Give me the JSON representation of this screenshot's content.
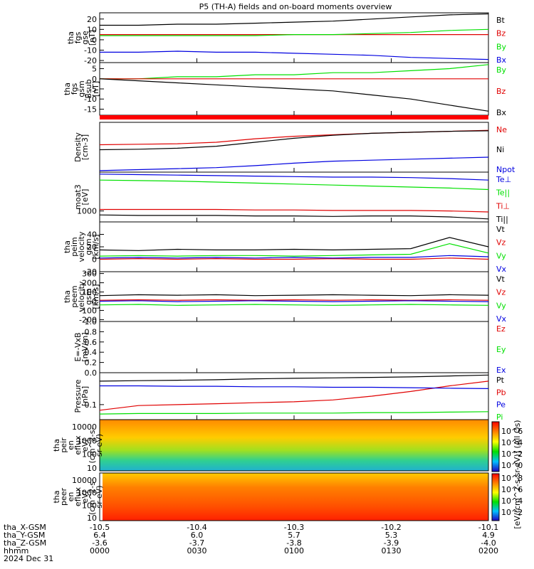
{
  "title": "P5 (TH-A) fields and on-board moments overview",
  "colors": {
    "black": "#000000",
    "red": "#e00000",
    "green": "#00e000",
    "blue": "#0000e0"
  },
  "chart_data": {
    "type": "line",
    "x_axis": {
      "time_labels": [
        "0000",
        "0030",
        "0100",
        "0130",
        "0200"
      ],
      "x_gsm": [
        "-10.5",
        "-10.4",
        "-10.3",
        "-10.2",
        "-10.1"
      ],
      "y_gsm": [
        "6.4",
        "6.0",
        "5.7",
        "5.3",
        "4.9"
      ],
      "z_gsm": [
        "-3.6",
        "-3.7",
        "-3.8",
        "-3.9",
        "-4.0"
      ],
      "row_labels": [
        "tha_X-GSM",
        "tha_Y-GSM",
        "tha_Z-GSM",
        "hhmm",
        "2024 Dec 31"
      ]
    },
    "panels": [
      {
        "ylabel": [
          "tha",
          "fgs",
          "gse",
          "[nT]"
        ],
        "ylim": [
          -22,
          26
        ],
        "yticks": [
          "20",
          "10",
          "0",
          "-10",
          "-20"
        ],
        "ytick_values": [
          20,
          10,
          0,
          -10,
          -20
        ],
        "legend": [
          "Bt",
          "Bz",
          "By",
          "Bx"
        ],
        "series": [
          {
            "name": "Bt",
            "color": "#000000",
            "values": [
              14,
              14,
              15,
              15,
              16,
              17,
              18,
              20,
              22,
              24,
              25
            ]
          },
          {
            "name": "Bz",
            "color": "#e00000",
            "values": [
              5,
              5,
              5,
              5,
              5,
              5,
              5,
              5,
              5,
              5,
              5
            ]
          },
          {
            "name": "By",
            "color": "#00e000",
            "values": [
              4,
              4,
              4,
              4,
              4,
              5,
              5,
              6,
              7,
              9,
              10
            ]
          },
          {
            "name": "Bx",
            "color": "#0000e0",
            "values": [
              -12,
              -12,
              -11,
              -12,
              -12,
              -13,
              -14,
              -15,
              -17,
              -18,
              -19
            ]
          }
        ]
      },
      {
        "ylabel": [
          "tha",
          "fgs",
          "gsm",
          "Bsub",
          "[nT]"
        ],
        "ylim": [
          -18,
          8
        ],
        "yticks": [
          "5",
          "0",
          "-5",
          "-10",
          "-15"
        ],
        "ytick_values": [
          5,
          0,
          -5,
          -10,
          -15
        ],
        "legend": [
          "By",
          "Bz",
          "Bx"
        ],
        "series": [
          {
            "name": "By",
            "color": "#00e000",
            "values": [
              0,
              0,
              1,
              1,
              2,
              2,
              3,
              3,
              4,
              5,
              7
            ]
          },
          {
            "name": "Bz",
            "color": "#e00000",
            "values": [
              0,
              0,
              0,
              0,
              0,
              0,
              0,
              0,
              0,
              0,
              0
            ]
          },
          {
            "name": "Bx",
            "color": "#000000",
            "values": [
              0,
              -1,
              -2,
              -3,
              -4,
              -5,
              -6,
              -8,
              -10,
              -13,
              -16
            ]
          }
        ]
      },
      {
        "ylabel": [
          "Density",
          "[cm-3]"
        ],
        "ylim": [
          0,
          1
        ],
        "yticks": [],
        "ytick_values": [],
        "legend": [
          "Ne",
          "Ni",
          "Npot"
        ],
        "series": [
          {
            "name": "Ne",
            "color": "#e00000",
            "values": [
              0.55,
              0.56,
              0.57,
              0.6,
              0.67,
              0.72,
              0.75,
              0.78,
              0.8,
              0.82,
              0.84
            ]
          },
          {
            "name": "Ni",
            "color": "#000000",
            "values": [
              0.45,
              0.46,
              0.48,
              0.52,
              0.6,
              0.68,
              0.74,
              0.78,
              0.8,
              0.82,
              0.83
            ]
          },
          {
            "name": "Npot",
            "color": "#0000e0",
            "values": [
              0.03,
              0.05,
              0.07,
              0.09,
              0.13,
              0.18,
              0.22,
              0.24,
              0.26,
              0.28,
              0.3
            ]
          }
        ]
      },
      {
        "ylabel": [
          "moat3",
          "[eV]"
        ],
        "ylim": [
          0,
          1
        ],
        "yticks": [
          "1000"
        ],
        "ytick_values": [
          0.22
        ],
        "legend": [
          "Te⊥",
          "Te||",
          "Ti⊥",
          "Ti||"
        ],
        "series": [
          {
            "name": "Te⊥",
            "color": "#0000e0",
            "values": [
              0.96,
              0.95,
              0.94,
              0.93,
              0.92,
              0.91,
              0.9,
              0.9,
              0.89,
              0.87,
              0.84
            ]
          },
          {
            "name": "Te||",
            "color": "#00e000",
            "values": [
              0.84,
              0.83,
              0.82,
              0.8,
              0.78,
              0.76,
              0.74,
              0.72,
              0.7,
              0.68,
              0.65
            ]
          },
          {
            "name": "Ti⊥",
            "color": "#e00000",
            "values": [
              0.25,
              0.25,
              0.25,
              0.25,
              0.24,
              0.24,
              0.23,
              0.23,
              0.23,
              0.22,
              0.2
            ]
          },
          {
            "name": "Ti||",
            "color": "#000000",
            "values": [
              0.14,
              0.13,
              0.13,
              0.13,
              0.12,
              0.12,
              0.11,
              0.12,
              0.12,
              0.1,
              0.06
            ]
          }
        ]
      },
      {
        "ylabel": [
          "tha",
          "peim",
          "velocity",
          "gsm",
          "[km/s]"
        ],
        "ylim": [
          -20,
          60
        ],
        "yticks": [
          "40",
          "20",
          "0",
          "-20"
        ],
        "ytick_values": [
          40,
          20,
          0,
          -20
        ],
        "legend": [
          "Vt",
          "Vz",
          "Vy",
          "Vx"
        ],
        "series": [
          {
            "name": "Vt",
            "color": "#000000",
            "values": [
              15,
              14,
              16,
              15,
              15,
              16,
              15,
              16,
              17,
              35,
              20
            ]
          },
          {
            "name": "Vz",
            "color": "#e00000",
            "values": [
              0,
              1,
              0,
              1,
              0,
              0,
              1,
              0,
              0,
              2,
              0
            ]
          },
          {
            "name": "Vy",
            "color": "#00e000",
            "values": [
              5,
              6,
              5,
              6,
              6,
              5,
              6,
              7,
              8,
              25,
              10
            ]
          },
          {
            "name": "Vx",
            "color": "#0000e0",
            "values": [
              2,
              3,
              2,
              3,
              2,
              3,
              2,
              3,
              3,
              6,
              4
            ]
          }
        ]
      },
      {
        "ylabel": [
          "tha",
          "peem",
          "velocity",
          "gsm",
          "[km/s]"
        ],
        "ylim": [
          -220,
          320
        ],
        "yticks": [
          "300",
          "200",
          "100",
          "0",
          "-100",
          "-200"
        ],
        "ytick_values": [
          300,
          200,
          100,
          0,
          -100,
          -200
        ],
        "legend": [
          "Vt",
          "Vz",
          "Vy",
          "Vx"
        ],
        "series": [
          {
            "name": "Vt",
            "color": "#000000",
            "values": [
              60,
              70,
              65,
              70,
              60,
              65,
              70,
              65,
              60,
              70,
              65
            ]
          },
          {
            "name": "Vz",
            "color": "#e00000",
            "values": [
              10,
              15,
              10,
              15,
              10,
              15,
              10,
              15,
              10,
              15,
              10
            ]
          },
          {
            "name": "Vy",
            "color": "#00e000",
            "values": [
              -40,
              -35,
              -45,
              -40,
              -35,
              -40,
              -45,
              -40,
              -35,
              -40,
              -45
            ]
          },
          {
            "name": "Vx",
            "color": "#0000e0",
            "values": [
              0,
              5,
              -5,
              0,
              5,
              0,
              -5,
              0,
              5,
              0,
              -5
            ]
          }
        ]
      },
      {
        "ylabel": [
          "E=-VxB",
          "[mV/m]"
        ],
        "ylim": [
          0,
          1
        ],
        "yticks": [
          "1.0",
          "0.8",
          "0.6",
          "0.4",
          "0.2",
          "0.0"
        ],
        "ytick_values": [
          1.0,
          0.8,
          0.6,
          0.4,
          0.2,
          0.0
        ],
        "legend": [
          "Ez",
          "Ey",
          "Ex"
        ],
        "series": []
      },
      {
        "ylabel": [
          "Pressure",
          "[nPa]"
        ],
        "ylim": [
          0,
          1
        ],
        "yticks": [
          "0.1"
        ],
        "ytick_values": [
          0.32
        ],
        "legend": [
          "Pt",
          "Pb",
          "Pe",
          "Pi"
        ],
        "series": [
          {
            "name": "Pt",
            "color": "#000000",
            "values": [
              0.82,
              0.83,
              0.84,
              0.85,
              0.87,
              0.88,
              0.89,
              0.9,
              0.91,
              0.93,
              0.95
            ]
          },
          {
            "name": "Pb",
            "color": "#e00000",
            "values": [
              0.2,
              0.3,
              0.32,
              0.34,
              0.36,
              0.38,
              0.42,
              0.5,
              0.6,
              0.72,
              0.82
            ]
          },
          {
            "name": "Pe",
            "color": "#0000e0",
            "values": [
              0.72,
              0.72,
              0.71,
              0.71,
              0.7,
              0.7,
              0.69,
              0.69,
              0.68,
              0.67,
              0.66
            ]
          },
          {
            "name": "Pi",
            "color": "#00e000",
            "values": [
              0.12,
              0.13,
              0.13,
              0.13,
              0.14,
              0.14,
              0.14,
              0.15,
              0.15,
              0.16,
              0.17
            ]
          }
        ]
      }
    ],
    "spectrograms": [
      {
        "ylabel": [
          "tha",
          "peir",
          "en",
          "eflux",
          "eV/",
          "(cm^2-s-",
          "sr-eV)"
        ],
        "yticks": [
          "10000",
          "1000",
          "100",
          "10"
        ]
      },
      {
        "ylabel": [
          "tha",
          "peer",
          "en",
          "eflux",
          "eV/",
          "(cm^2-s-",
          "sr-eV)"
        ],
        "yticks": [
          "10000",
          "1000",
          "100",
          "10"
        ]
      }
    ],
    "colorbar": {
      "label": "[eV/(cm^2-s-sr-eV)] (All Qs)",
      "ticks_top": [
        "10^6",
        "10^4",
        "10^2",
        "10^0"
      ],
      "ticks_bottom": [
        "10^8",
        "10^6",
        "10^4",
        "10^2"
      ]
    }
  }
}
